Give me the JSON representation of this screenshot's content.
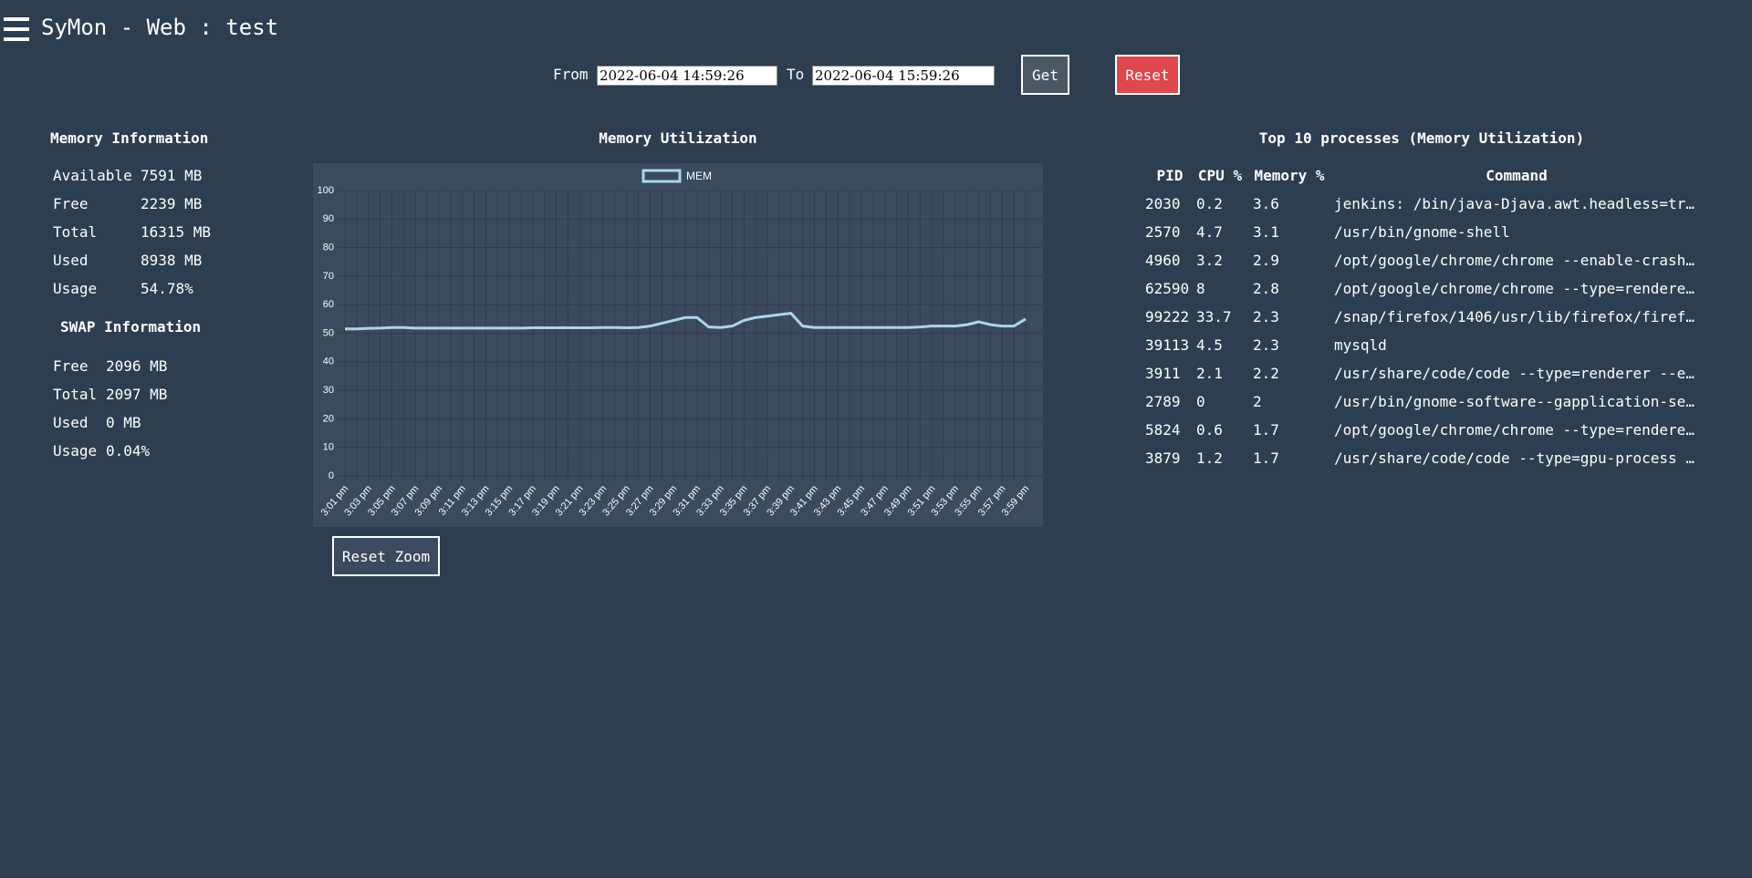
{
  "header": {
    "title": "SyMon - Web : test"
  },
  "controls": {
    "from_label": "From",
    "from_value": "2022-06-04 14:59:26",
    "to_label": "To",
    "to_value": "2022-06-04 15:59:26",
    "get": "Get",
    "reset": "Reset"
  },
  "memory": {
    "heading": "Memory Information",
    "rows": [
      [
        "Available",
        "7591 MB"
      ],
      [
        "Free",
        "2239 MB"
      ],
      [
        "Total",
        "16315 MB"
      ],
      [
        "Used",
        "8938 MB"
      ],
      [
        "Usage",
        "54.78%"
      ]
    ]
  },
  "swap": {
    "heading": "SWAP Information",
    "rows": [
      [
        "Free",
        "2096 MB"
      ],
      [
        "Total",
        "2097 MB"
      ],
      [
        "Used",
        "0 MB"
      ],
      [
        "Usage",
        "0.04%"
      ]
    ]
  },
  "chart_data": {
    "type": "line",
    "title": "Memory Utilization",
    "categories": [
      "3:01 pm",
      null,
      "3:03 pm",
      null,
      "3:05 pm",
      null,
      "3:07 pm",
      null,
      "3:09 pm",
      null,
      "3:11 pm",
      null,
      "3:13 pm",
      null,
      "3:15 pm",
      null,
      "3:17 pm",
      null,
      "3:19 pm",
      null,
      "3:21 pm",
      null,
      "3:23 pm",
      null,
      "3:25 pm",
      null,
      "3:27 pm",
      null,
      "3:29 pm",
      null,
      "3:31 pm",
      null,
      "3:33 pm",
      null,
      "3:35 pm",
      null,
      "3:37 pm",
      null,
      "3:39 pm",
      null,
      "3:41 pm",
      null,
      "3:43 pm",
      null,
      "3:45 pm",
      null,
      "3:47 pm",
      null,
      "3:49 pm",
      null,
      "3:51 pm",
      null,
      "3:53 pm",
      null,
      "3:55 pm",
      null,
      "3:57 pm",
      null,
      "3:59 pm"
    ],
    "series": [
      {
        "name": "MEM",
        "color": "#a8d8ea",
        "values": [
          51.5,
          51.5,
          51.7,
          51.8,
          52,
          52,
          51.8,
          51.8,
          51.8,
          51.8,
          51.8,
          51.8,
          51.8,
          51.8,
          51.8,
          51.8,
          51.9,
          51.9,
          51.9,
          51.9,
          51.9,
          51.9,
          52,
          52,
          51.9,
          52,
          52.5,
          53.5,
          54.5,
          55.5,
          55.5,
          52.2,
          52,
          52.5,
          54.5,
          55.5,
          56,
          56.5,
          57,
          52.5,
          52,
          52,
          52,
          52,
          52,
          52,
          52,
          52,
          52,
          52.2,
          52.5,
          52.5,
          52.5,
          53,
          54,
          53,
          52.5,
          52.5,
          55
        ]
      }
    ],
    "ylim": [
      0,
      100
    ],
    "yticks": [
      0,
      10,
      20,
      30,
      40,
      50,
      60,
      70,
      80,
      90,
      100
    ],
    "grid": true,
    "legend": "top"
  },
  "processes": {
    "heading": "Top 10 processes (Memory Utilization)",
    "columns": [
      "PID",
      "CPU %",
      "Memory %",
      "Command"
    ],
    "rows": [
      [
        "2030",
        "0.2",
        "3.6",
        "jenkins: /bin/java-Djava.awt.headless=tr…"
      ],
      [
        "2570",
        "4.7",
        "3.1",
        "/usr/bin/gnome-shell"
      ],
      [
        "4960",
        "3.2",
        "2.9",
        "/opt/google/chrome/chrome --enable-crash…"
      ],
      [
        "62590",
        "8",
        "2.8",
        "/opt/google/chrome/chrome --type=rendere…"
      ],
      [
        "99222",
        "33.7",
        "2.3",
        "/snap/firefox/1406/usr/lib/firefox/firef…"
      ],
      [
        "39113",
        "4.5",
        "2.3",
        "mysqld"
      ],
      [
        "3911",
        "2.1",
        "2.2",
        "/usr/share/code/code --type=renderer --e…"
      ],
      [
        "2789",
        "0",
        "2",
        "/usr/bin/gnome-software--gapplication-se…"
      ],
      [
        "5824",
        "0.6",
        "1.7",
        "/opt/google/chrome/chrome --type=rendere…"
      ],
      [
        "3879",
        "1.2",
        "1.7",
        "/usr/share/code/code --type=gpu-process …"
      ]
    ]
  },
  "reset_zoom": "Reset Zoom"
}
